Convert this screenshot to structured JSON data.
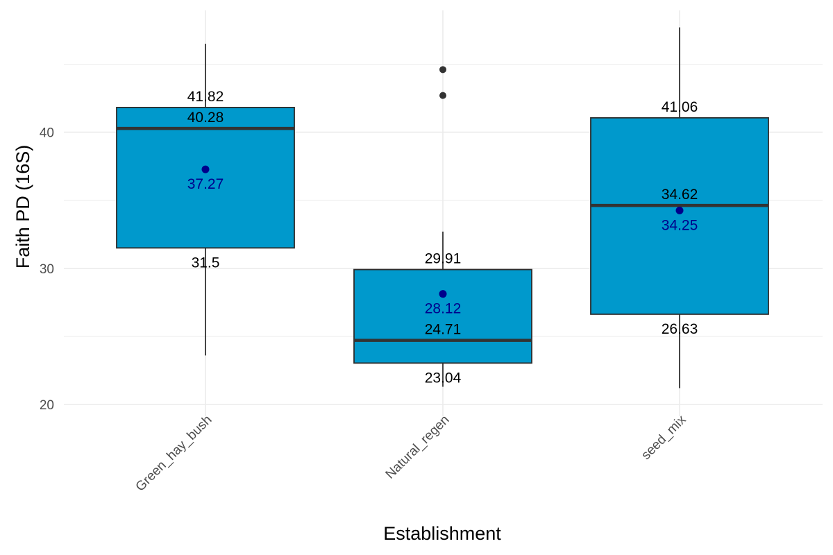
{
  "chart_data": {
    "type": "box",
    "title": "",
    "xlabel": "Establishment",
    "ylabel": "Faith PD (16S)",
    "ylim": [
      20,
      48
    ],
    "yticks": [
      20,
      30,
      40
    ],
    "grid": true,
    "legend": "none",
    "colors": {
      "box_fill": "#0099cc",
      "box_stroke": "#2b2b2b",
      "median": "#333333",
      "mean_point": "#00008b",
      "mean_label": "#00008b",
      "stat_label": "#000000",
      "outlier": "#333333",
      "grid": "#ebebeb",
      "tick_label": "#4d4d4d"
    },
    "categories": [
      "Green_hay_bush",
      "Natural_regen",
      "seed_mix"
    ],
    "boxes": [
      {
        "category": "Green_hay_bush",
        "whisker_low": 23.6,
        "q1": 31.5,
        "median": 40.28,
        "q3": 41.82,
        "whisker_high": 46.5,
        "mean": 37.27,
        "outliers": [],
        "labels": {
          "q1": "31.5",
          "median": "40.28",
          "q3": "41.82",
          "mean": "37.27"
        }
      },
      {
        "category": "Natural_regen",
        "whisker_low": 21.3,
        "q1": 23.04,
        "median": 24.71,
        "q3": 29.91,
        "whisker_high": 32.7,
        "mean": 28.12,
        "outliers": [
          44.6,
          42.7
        ],
        "labels": {
          "q1": "23.04",
          "median": "24.71",
          "q3": "29.91",
          "mean": "28.12"
        }
      },
      {
        "category": "seed_mix",
        "whisker_low": 21.2,
        "q1": 26.63,
        "median": 34.62,
        "q3": 41.06,
        "whisker_high": 47.7,
        "mean": 34.25,
        "outliers": [],
        "labels": {
          "q1": "26.63",
          "median": "34.62",
          "q3": "41.06",
          "mean": "34.25"
        }
      }
    ]
  }
}
